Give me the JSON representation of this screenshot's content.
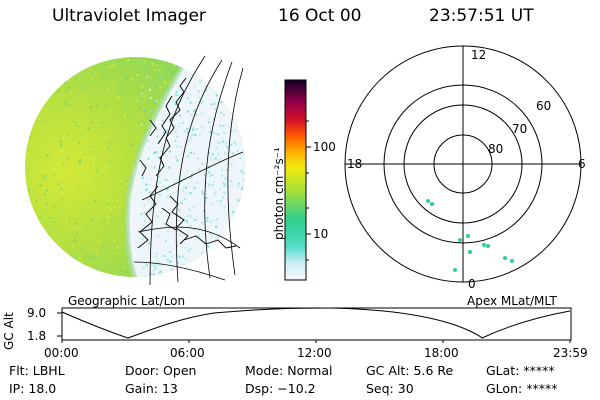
{
  "header": {
    "instrument": "Ultraviolet Imager",
    "date": "16 Oct 00",
    "time": "23:57:51 UT"
  },
  "globe_panel": {
    "caption": "Geographic Lat/Lon"
  },
  "colorbar": {
    "unit_label": "photon cm⁻²s⁻¹",
    "ticks": [
      "100",
      "10"
    ],
    "colors": [
      "#1a0030",
      "#4a0050",
      "#8a0050",
      "#c8002a",
      "#ff2a00",
      "#ff7a00",
      "#ffb400",
      "#ffe000",
      "#d8f000",
      "#a0e000",
      "#60d040",
      "#20c890",
      "#30d8d8",
      "#a0e8f0",
      "#d8f0f8",
      "#f0f8ff"
    ]
  },
  "polar_panel": {
    "caption": "Apex MLat/MLT",
    "mlt_labels": [
      "12",
      "18",
      "6",
      "0"
    ],
    "lat_labels": [
      "60",
      "70",
      "80"
    ]
  },
  "altitude_plot": {
    "ylabel": "GC Alt",
    "yticks": [
      "9.0",
      "1.8"
    ],
    "xticks": [
      "00:00",
      "06:00",
      "12:00",
      "18:00",
      "23:59"
    ]
  },
  "status": {
    "row1": [
      {
        "key": "Flt:",
        "value": "LBHL"
      },
      {
        "key": "Door:",
        "value": "Open"
      },
      {
        "key": "Mode:",
        "value": "Normal"
      },
      {
        "key": "GC Alt:",
        "value": "5.6 Re"
      },
      {
        "key": "GLat:",
        "value": "*****"
      }
    ],
    "row2": [
      {
        "key": "IP:",
        "value": "18.0"
      },
      {
        "key": "Gain:",
        "value": "13"
      },
      {
        "key": "Dsp:",
        "value": "−10.2"
      },
      {
        "key": "Seq:",
        "value": "30"
      },
      {
        "key": "GLon:",
        "value": "*****"
      }
    ]
  }
}
